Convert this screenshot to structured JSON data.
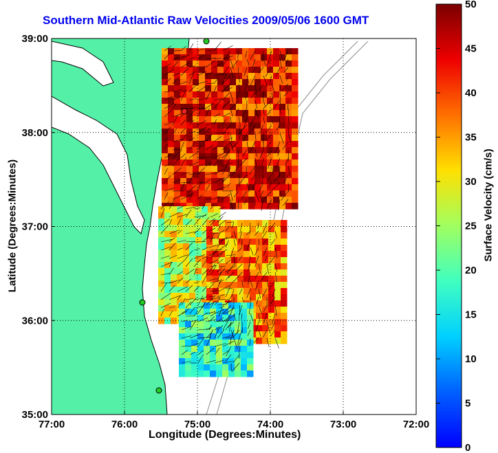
{
  "title": "Southern Mid-Atlantic Raw Velocities 2009/05/06 1600 GMT",
  "xlabel": "Longitude (Degrees:Minutes)",
  "ylabel": "Latitude (Degrees:Minutes)",
  "colorbar_label": "Surface Velocity (cm/s)",
  "chart_data": {
    "type": "heatmap",
    "title": "Southern Mid-Atlantic Raw Velocities 2009/05/06 1600 GMT",
    "xlabel": "Longitude (Degrees:Minutes)",
    "ylabel": "Latitude (Degrees:Minutes)",
    "x_ticks": [
      "77:00",
      "76:00",
      "75:00",
      "74:00",
      "73:00",
      "72:00"
    ],
    "y_ticks": [
      "35:00",
      "36:00",
      "37:00",
      "38:00",
      "39:00"
    ],
    "xlim": [
      -77,
      -72
    ],
    "ylim": [
      35,
      39
    ],
    "grid": true,
    "colorbar": {
      "label": "Surface Velocity (cm/s)",
      "ticks": [
        0,
        5,
        10,
        15,
        20,
        25,
        30,
        35,
        40,
        45,
        50
      ],
      "range": [
        0,
        50
      ],
      "colormap": "jet"
    },
    "colors": {
      "land": "#55f0a8",
      "water": "#ffffff",
      "coast": "#000000",
      "bathymetry": "#999999",
      "title": "#0000ee",
      "station": "#22cc22",
      "station_alt": "#ee2222"
    }
  }
}
